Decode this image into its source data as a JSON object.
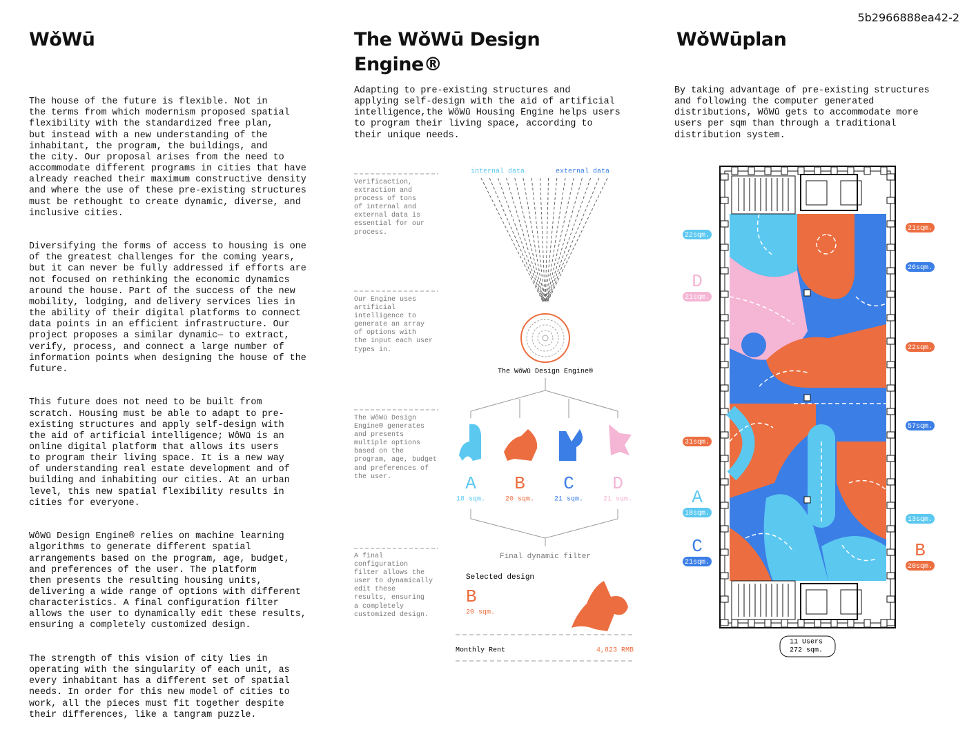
{
  "page_id": "5b2966888ea42-2",
  "intro": {
    "title": "WǒWū",
    "paragraphs": [
      "The house of the future is flexible. Not in\nthe terms from which modernism proposed spatial\nflexibility with the standardized free plan,\nbut instead with a new understanding of the\ninhabitant, the program, the buildings, and\nthe city. Our proposal arises from the need to\naccommodate different programs in cities that have\nalready reached their maximum constructive density\nand where the use of these pre-existing structures\nmust be rethought to create dynamic, diverse, and\ninclusive cities.",
      "Diversifying the forms of access to housing is one\nof the greatest challenges for the coming years,\nbut it can never be fully addressed if efforts are\nnot focused on rethinking the economic dynamics\naround the house. Part of the success of the new\nmobility, lodging, and delivery services lies in\nthe ability of their digital platforms to connect\ndata points in an efficient infrastructure. Our\nproject proposes a similar dynamic— to extract,\nverify, process, and connect a large number of\ninformation points when designing the house of the\nfuture.",
      "This future does not need to be built from\nscratch. Housing must be able to adapt to pre-\nexisting structures and apply self-design with\nthe aid of artificial intelligence; WôWū is an\nonline digital platform that allows its users\nto program their living space. It is a new way\nof understanding real estate development and of\nbuilding and inhabiting our cities. At an urban\nlevel, this new spatial flexibility results in\ncities for everyone.",
      "WôWū Design Engine® relies on machine learning\nalgorithms to generate different spatial\narrangements based on the program, age, budget,\nand preferences of the user. The platform\nthen presents the resulting housing units,\ndelivering a wide range of options with different\ncharacteristics. A final configuration filter\nallows the user to dynamically edit these results,\nensuring a completely customized design.",
      "The strength of this vision of city lies in\noperating with the singularity of each unit, as\nevery inhabitant has a different set of spatial\nneeds. In order for this new model of cities to\nwork, all the pieces must fit together despite\ntheir differences, like a tangram puzzle."
    ]
  },
  "engine": {
    "title": "The WǒWū Design\nEngine®",
    "text": "Adapting to pre-existing structures and\napplying self-design with the aid of artificial\nintelligence,the WôWū Housing Engine helps users\nto program their living space, according to\ntheir unique needs.",
    "notes": [
      "Verificaction,\nextraction and\nprocess of tons\nof internal and\nexternal data is\nessential for our\nprocess.",
      "Our Engine uses\nartificial\nintelligence to\ngenerate an array\nof options with\nthe input each user\ntypes in.",
      "The WôWū Design\nEngine® generates\nand presents\nmultiple options\nbased on the\nprogram, age, budget\nand preferences of\nthe user.",
      "A final\nconfiguration\nfilter allows the\nuser to dynamically\nedit these\nresults, ensuring\na completely\ncustomized design."
    ],
    "inputs": [
      {
        "label": "internal data",
        "color": "#5bc8f0"
      },
      {
        "label": "external data",
        "color": "#3b7ee6"
      }
    ],
    "engine_label": "The WôWū Design Engine®",
    "options": [
      {
        "letter": "A",
        "area": "18 sqm.",
        "color": "#5bc8f0"
      },
      {
        "letter": "B",
        "area": "20 sqm.",
        "color": "#ec6d3f"
      },
      {
        "letter": "C",
        "area": "21 sqm.",
        "color": "#3b7ee6"
      },
      {
        "letter": "D",
        "area": "21 sqm.",
        "color": "#f5b5d5"
      }
    ],
    "filter_label": "Final dynamic filter",
    "selected": {
      "label": "Selected design",
      "letter": "B",
      "area": "20 sqm.",
      "color": "#ec6d3f"
    },
    "rent": {
      "label": "Monthly Rent",
      "value": "4,823 RMB"
    }
  },
  "plan": {
    "title": "WǒWūplan",
    "text": "By taking advantage of pre-existing structures\nand following the computer generated\ndistributions, WôWū gets to accommodate more\nusers per sqm than through a traditional\ndistribution system.",
    "tags": [
      {
        "area": "22sqm.",
        "color": "#5bc8f0"
      },
      {
        "letter": "D",
        "area": "21sqm.",
        "color": "#f5b5d5"
      },
      {
        "area": "31sqm.",
        "color": "#ec6d3f"
      },
      {
        "letter": "A",
        "area": "18sqm.",
        "color": "#5bc8f0"
      },
      {
        "letter": "C",
        "area": "21sqm.",
        "color": "#3b7ee6"
      },
      {
        "area": "21sqm.",
        "color": "#ec6d3f"
      },
      {
        "area": "26sqm.",
        "color": "#3b7ee6"
      },
      {
        "area": "22sqm.",
        "color": "#ec6d3f"
      },
      {
        "area": "57sqm.",
        "color": "#3b7ee6"
      },
      {
        "area": "13sqm.",
        "color": "#5bc8f0"
      },
      {
        "letter": "B",
        "area": "20sqm.",
        "color": "#ec6d3f"
      }
    ],
    "summary": [
      "11 Users",
      "272 sqm."
    ]
  }
}
